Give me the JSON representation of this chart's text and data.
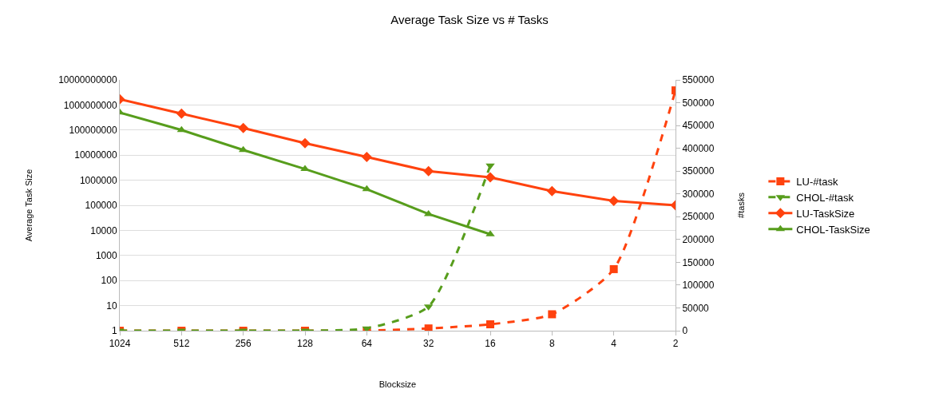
{
  "chart_data": {
    "type": "line",
    "title": "Average Task Size vs # Tasks",
    "xlabel": "Blocksize",
    "ylabel": "Average Task Size",
    "y2label": "#tasks",
    "categories": [
      "1024",
      "512",
      "256",
      "128",
      "64",
      "32",
      "16",
      "8",
      "4",
      "2"
    ],
    "log": "y",
    "ylim": [
      1,
      10000000000
    ],
    "yticks": [
      1,
      10,
      100,
      1000,
      10000,
      100000,
      1000000,
      10000000,
      100000000,
      1000000000,
      10000000000
    ],
    "y2lim": [
      0,
      550000
    ],
    "y2ticks": [
      0,
      50000,
      100000,
      150000,
      200000,
      250000,
      300000,
      350000,
      400000,
      450000,
      500000,
      550000
    ],
    "grid": "y",
    "legend": "right",
    "series": [
      {
        "name": "LU-#task",
        "color": "#ff420e",
        "axis": "y2",
        "marker": "square",
        "line_style": "dashed",
        "values": [
          0,
          0,
          0,
          0,
          0,
          5000,
          14000,
          36000,
          135000,
          527000
        ]
      },
      {
        "name": "CHOL-#task",
        "color": "#579d1c",
        "axis": "y2",
        "marker": "triangle-down",
        "line_style": "dashed",
        "values": [
          0,
          0,
          0,
          0,
          5000,
          53000,
          362000,
          null,
          null,
          null
        ]
      },
      {
        "name": "LU-TaskSize",
        "color": "#ff420e",
        "marker": "diamond",
        "line_style": "solid",
        "values": [
          1700000000,
          450000000,
          120000000,
          30000000,
          8500000,
          2300000,
          1300000,
          370000,
          150000,
          100000
        ]
      },
      {
        "name": "CHOL-TaskSize",
        "color": "#579d1c",
        "marker": "triangle",
        "line_style": "solid",
        "values": [
          500000000,
          100000000,
          16000000,
          2800000,
          440000,
          45000,
          7000,
          null,
          null,
          null
        ]
      }
    ]
  }
}
